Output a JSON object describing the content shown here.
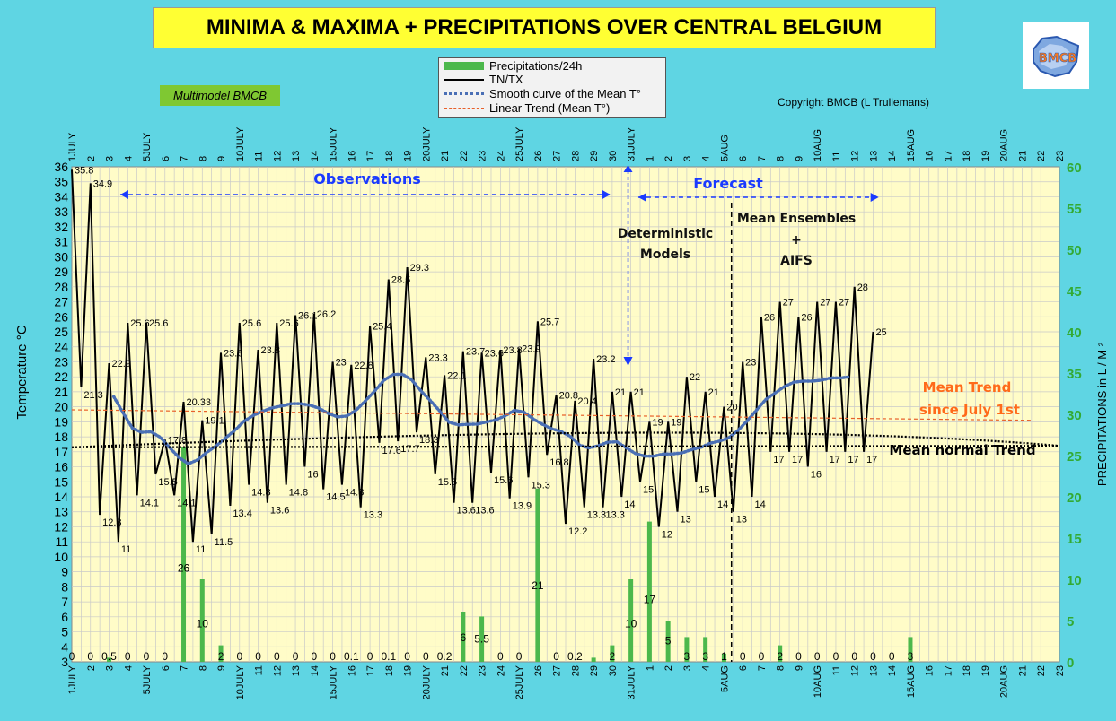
{
  "title": "MINIMA & MAXIMA + PRECIPITATIONS OVER CENTRAL BELGIUM",
  "subtitle_box": "Multimodel BMCB",
  "copyright": "Copyright BMCB (L Trullemans)",
  "logo_text": "BMCB",
  "colors": {
    "plot_bg": "#fffcc8",
    "page_bg": "#5fd5e3",
    "precip": "#4cb84c",
    "tntx": "#000000",
    "smooth": "#4a6fb5",
    "trend": "#e8602a",
    "annot": "#1a3aff",
    "mean_trend_label": "#ff6a1a",
    "right_axis": "#33aa33"
  },
  "legend": [
    {
      "label": "Precipitations/24h",
      "kind": "bar"
    },
    {
      "label": "TN/TX",
      "kind": "line"
    },
    {
      "label": "Smooth curve of the Mean T°",
      "kind": "dotted"
    },
    {
      "label": "Linear Trend  (Mean T°)",
      "kind": "dashed"
    }
  ],
  "annotations": {
    "observations": "Observations",
    "forecast": "Forecast",
    "deterministic_1": "Deterministic",
    "deterministic_2": "Models",
    "ensembles_1": "Mean Ensembles",
    "ensembles_2": "+",
    "ensembles_3": "AIFS",
    "mean_trend_1": "Mean Trend",
    "mean_trend_2": "since July 1st",
    "mean_normal": "Mean normal Trend"
  },
  "chart_data": {
    "type": "line",
    "ylabel": "Temperature   °C",
    "y2label": "PRECIPITATIONS in L / M ²",
    "ylim": [
      3,
      36
    ],
    "y2lim": [
      0,
      60
    ],
    "day_labels": [
      "1JULY",
      "2",
      "3",
      "4",
      "5JULY",
      "6",
      "7",
      "8",
      "9",
      "10JULY",
      "11",
      "12",
      "13",
      "14",
      "15JULY",
      "16",
      "17",
      "18",
      "19",
      "20JULY",
      "21",
      "22",
      "23",
      "24",
      "25JULY",
      "26",
      "27",
      "28",
      "29",
      "30",
      "31JULY",
      "1",
      "2",
      "3",
      "4",
      "5AUG",
      "6",
      "7",
      "8",
      "9",
      "10AUG",
      "11",
      "12",
      "13",
      "14",
      "15AUG",
      "16",
      "17",
      "18",
      "19",
      "20AUG",
      "21",
      "22",
      "23"
    ],
    "tntx_series": {
      "name": "TN/TX",
      "values": [
        35.8,
        21.3,
        34.9,
        12.8,
        22.9,
        11,
        25.6,
        14.1,
        25.6,
        15.5,
        17.8,
        14.1,
        20.33,
        11,
        19.1,
        11.5,
        23.6,
        13.4,
        25.6,
        14.8,
        23.8,
        13.6,
        25.6,
        14.8,
        26.1,
        16,
        26.2,
        14.5,
        23,
        14.8,
        22.8,
        13.3,
        25.4,
        17.6,
        28.5,
        17.7,
        29.3,
        18.3,
        23.3,
        15.5,
        22.1,
        13.6,
        23.7,
        13.6,
        23.6,
        15.6,
        23.8,
        13.9,
        23.9,
        15.3,
        25.7,
        16.8,
        20.8,
        12.2,
        20.4,
        13.3,
        23.2,
        13.3,
        21,
        14,
        21,
        15,
        19,
        12,
        19,
        13,
        22,
        15,
        21,
        14,
        20,
        13,
        23,
        14,
        26,
        17,
        27,
        17,
        26,
        16,
        27,
        17,
        27,
        17,
        28,
        17,
        25
      ],
      "labels": [
        "35.8",
        "21.3",
        "34.9",
        "12.8",
        "22.9",
        "11",
        "25.6",
        "14.1",
        "25.6",
        "15.5",
        "17.8",
        "14.1",
        "20.33",
        "11",
        "19.1",
        "11.5",
        "23.6",
        "13.4",
        "25.6",
        "14.8",
        "23.8",
        "13.6",
        "25.6",
        "14.8",
        "26.1",
        "16",
        "26.2",
        "14.5",
        "23",
        "14.8",
        "22.8",
        "13.3",
        "25.4",
        "17.6",
        "28.5",
        "17.7",
        "29.3",
        "18.3",
        "23.3",
        "15.5",
        "22.1",
        "13.6",
        "23.7",
        "13.6",
        "23.6",
        "15.6",
        "23.8",
        "13.9",
        "23.9",
        "15.3",
        "25.7",
        "16.8",
        "20.8",
        "12.2",
        "20.4",
        "13.3",
        "23.2",
        "13.3",
        "21",
        "14",
        "21",
        "15",
        "19",
        "12",
        "19",
        "13",
        "22",
        "15",
        "21",
        "14",
        "20",
        "13",
        "23",
        "14",
        "26",
        "17",
        "27",
        "17",
        "26",
        "16",
        "27",
        "17",
        "27",
        "17",
        "28",
        "17",
        "25"
      ]
    },
    "precip_series": {
      "name": "Precipitations/24h",
      "values": [
        0,
        0,
        0.5,
        0,
        0,
        0,
        26,
        10,
        2,
        0,
        0,
        0,
        0,
        0,
        0,
        0.1,
        0,
        0.1,
        0,
        0,
        0.2,
        6,
        5.5,
        0,
        0,
        21,
        0,
        0.2,
        0.5,
        2,
        10,
        17,
        5,
        3,
        3,
        1,
        0,
        0,
        2,
        0,
        0,
        0,
        0,
        0,
        0,
        3
      ],
      "labels": [
        "0",
        "0",
        "0.5",
        "0",
        "0",
        "0",
        "26",
        "10",
        "2",
        "0",
        "0",
        "0",
        "0",
        "0",
        "0",
        "0.1",
        "0",
        "0.1",
        "0",
        "0",
        "0.2",
        "6",
        "5.5",
        "0",
        "0",
        "21",
        "0",
        "0.2",
        "",
        "2",
        "10",
        "17",
        "5",
        "3",
        "3",
        "1",
        "0",
        "0",
        "2",
        "0",
        "0",
        "0",
        "0",
        "0",
        "0",
        "3"
      ]
    }
  }
}
